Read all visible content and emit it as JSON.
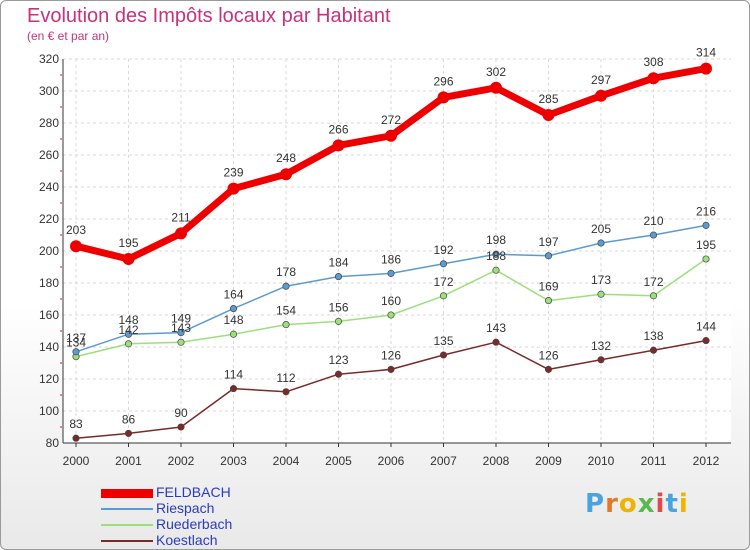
{
  "header": {
    "title": "Evolution des Impôts locaux par Habitant",
    "subtitle": "(en € et par an)"
  },
  "chart_data": {
    "type": "line",
    "title": "Evolution des Impôts locaux par Habitant",
    "subtitle": "(en € et par an)",
    "xlabel": "",
    "ylabel": "",
    "x": [
      "2000",
      "2001",
      "2002",
      "2003",
      "2004",
      "2005",
      "2006",
      "2007",
      "2008",
      "2009",
      "2010",
      "2011",
      "2012"
    ],
    "ylim": [
      80,
      320
    ],
    "yticks": [
      80,
      100,
      120,
      140,
      160,
      180,
      200,
      220,
      240,
      260,
      280,
      300,
      320
    ],
    "grid": true,
    "legend_position": "bottom-left",
    "series": [
      {
        "name": "FELDBACH",
        "color": "#ee0000",
        "values": [
          203,
          195,
          211,
          239,
          248,
          266,
          272,
          296,
          302,
          285,
          297,
          308,
          314
        ]
      },
      {
        "name": "Riespach",
        "color": "#5b9bd1",
        "values": [
          137,
          148,
          149,
          164,
          178,
          184,
          186,
          192,
          198,
          197,
          205,
          210,
          216
        ]
      },
      {
        "name": "Ruederbach",
        "color": "#9be07a",
        "values": [
          134,
          142,
          143,
          148,
          154,
          156,
          160,
          172,
          188,
          169,
          173,
          172,
          195
        ]
      },
      {
        "name": "Koestlach",
        "color": "#7a2a2a",
        "values": [
          83,
          86,
          90,
          114,
          112,
          123,
          126,
          135,
          143,
          126,
          132,
          138,
          144
        ]
      }
    ]
  },
  "logo": {
    "letters": [
      "P",
      "r",
      "o",
      "x",
      "i",
      "t",
      "i"
    ],
    "colors": [
      "#4aa3df",
      "#e07b2a",
      "#f0b400",
      "#5ab94c",
      "#e04a4a",
      "#4aa3df",
      "#f0b400"
    ]
  }
}
